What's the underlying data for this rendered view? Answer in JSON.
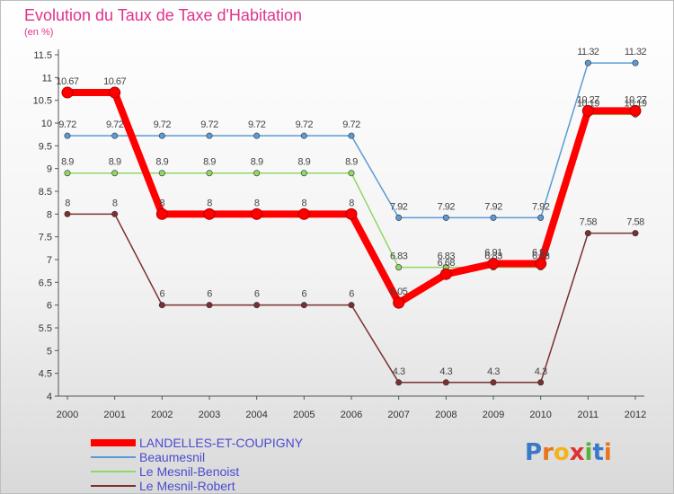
{
  "chart_data": {
    "type": "line",
    "title": "Evolution du Taux de Taxe d'Habitation",
    "unit_label": "(en %)",
    "xlabel": "",
    "ylabel": "",
    "x": [
      "2000",
      "2001",
      "2002",
      "2003",
      "2004",
      "2005",
      "2006",
      "2007",
      "2008",
      "2009",
      "2010",
      "2011",
      "2012"
    ],
    "ylim": [
      4,
      11.5
    ],
    "yticks": [
      "4",
      "4.5",
      "5",
      "5.5",
      "6",
      "6.5",
      "7",
      "7.5",
      "8",
      "8.5",
      "9",
      "9.5",
      "10",
      "10.5",
      "11",
      "11.5"
    ],
    "grid": false,
    "series": [
      {
        "name": "LANDELLES-ET-COUPIGNY",
        "color": "#ff0000",
        "highlight": true,
        "values": [
          10.67,
          10.67,
          8,
          8,
          8,
          8,
          8,
          6.05,
          6.68,
          6.91,
          6.91,
          10.27,
          10.27
        ],
        "labels": [
          "10.67",
          "10.67",
          "8",
          "8",
          "8",
          "8",
          "8",
          "6.05",
          "6.68",
          "6.91",
          "6.91",
          "10.27",
          "10.27"
        ]
      },
      {
        "name": "Beaumesnil",
        "color": "#5b9bd5",
        "highlight": false,
        "values": [
          9.72,
          9.72,
          9.72,
          9.72,
          9.72,
          9.72,
          9.72,
          7.92,
          7.92,
          7.92,
          7.92,
          11.32,
          11.32
        ],
        "labels": [
          "9.72",
          "9.72",
          "9.72",
          "9.72",
          "9.72",
          "9.72",
          "9.72",
          "7.92",
          "7.92",
          "7.92",
          "7.92",
          "11.32",
          "11.32"
        ]
      },
      {
        "name": "Le Mesnil-Benoist",
        "color": "#8fd866",
        "highlight": false,
        "values": [
          8.9,
          8.9,
          8.9,
          8.9,
          8.9,
          8.9,
          8.9,
          6.83,
          6.83,
          6.83,
          6.83,
          10.19,
          10.19
        ],
        "labels": [
          "8.9",
          "8.9",
          "8.9",
          "8.9",
          "8.9",
          "8.9",
          "8.9",
          "6.83",
          "6.83",
          "6.83",
          "6.83",
          "10.19",
          "10.19"
        ]
      },
      {
        "name": "Le Mesnil-Robert",
        "color": "#7b3030",
        "highlight": false,
        "values": [
          8,
          8,
          6,
          6,
          6,
          6,
          6,
          4.3,
          4.3,
          4.3,
          4.3,
          7.58,
          7.58
        ],
        "labels": [
          "8",
          "8",
          "6",
          "6",
          "6",
          "6",
          "6",
          "4.3",
          "4.3",
          "4.3",
          "4.3",
          "7.58",
          "7.58"
        ]
      }
    ]
  },
  "logo": {
    "text": "Proxiti",
    "letters": [
      "P",
      "r",
      "o",
      "x",
      "i",
      "t",
      "i"
    ]
  }
}
